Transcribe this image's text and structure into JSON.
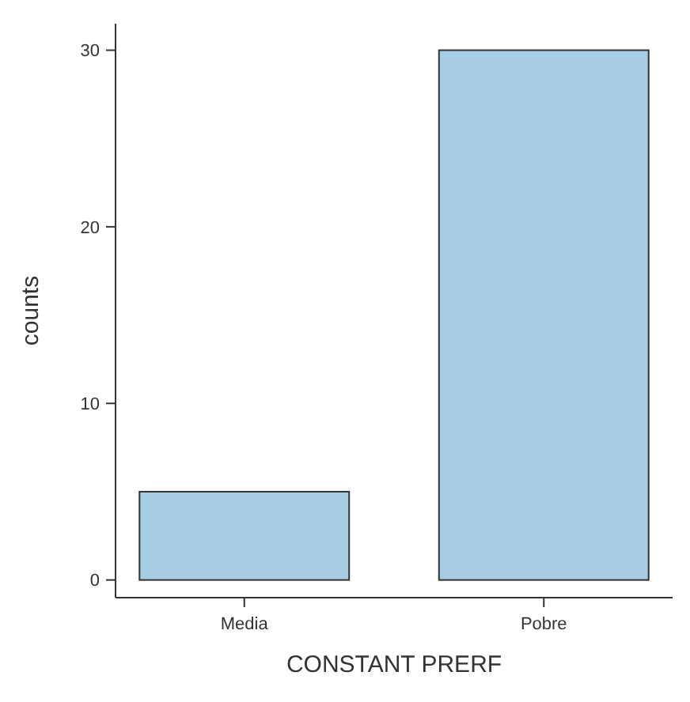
{
  "chart_data": {
    "type": "bar",
    "xlabel": "CONSTANT PRERF",
    "ylabel": "counts",
    "categories": [
      "Media",
      "Pobre"
    ],
    "values": [
      5,
      30
    ],
    "color": "#a6cde4",
    "ylim": [
      -1,
      31.5
    ],
    "yticks": [
      0,
      10,
      20,
      30
    ],
    "grid": false
  }
}
